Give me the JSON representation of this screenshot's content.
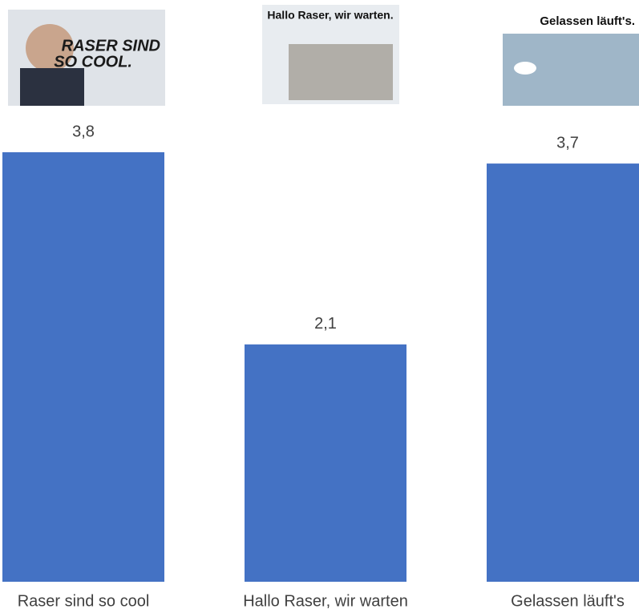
{
  "chart_data": {
    "type": "bar",
    "categories": [
      "Raser sind so cool",
      "Hallo Raser, wir warten",
      "Gelassen läuft's"
    ],
    "values": [
      3.8,
      2.1,
      3.7
    ],
    "value_labels": [
      "3,8",
      "2,1",
      "3,7"
    ],
    "color": "#4472c4",
    "poster_texts": [
      [
        "RASER SIND",
        "SO COOL."
      ],
      [
        "Hallo Raser, wir warten."
      ],
      [
        "Gelassen läuft's."
      ]
    ]
  }
}
